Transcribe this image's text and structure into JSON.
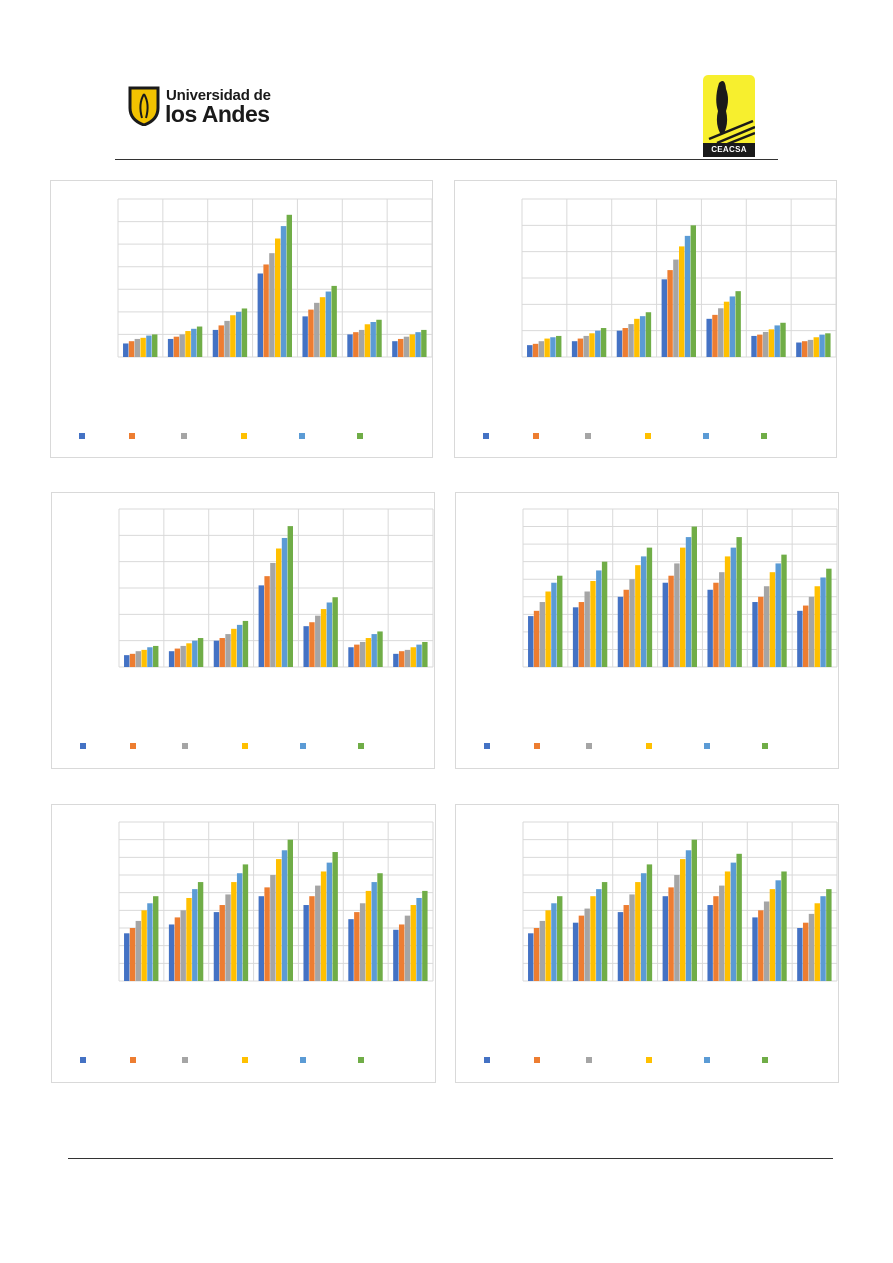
{
  "header": {
    "logo_left": {
      "line1": "Universidad de",
      "line2": "los Andes",
      "colors": {
        "shield": "#f2c200",
        "outline": "#1a1a1a"
      }
    },
    "logo_right": {
      "caption": "CEACSA",
      "colors": {
        "background": "#f7ef2e",
        "tree": "#1a1a1a"
      }
    }
  },
  "series_colors": [
    "#4472c4",
    "#ed7d31",
    "#a5a5a5",
    "#ffc000",
    "#5b9bd5",
    "#70ad47"
  ],
  "chart_data": [
    {
      "type": "bar",
      "categories": [
        "",
        "",
        "",
        "",
        "",
        "",
        ""
      ],
      "ylim": [
        0,
        7
      ],
      "grid": true,
      "legend": "bottom",
      "series": [
        {
          "values": [
            0.6,
            0.8,
            1.2,
            3.7,
            1.8,
            1.0,
            0.7
          ]
        },
        {
          "values": [
            0.7,
            0.9,
            1.4,
            4.1,
            2.1,
            1.1,
            0.8
          ]
        },
        {
          "values": [
            0.8,
            1.0,
            1.6,
            4.6,
            2.4,
            1.2,
            0.9
          ]
        },
        {
          "values": [
            0.85,
            1.15,
            1.85,
            5.25,
            2.65,
            1.45,
            1.0
          ]
        },
        {
          "values": [
            0.95,
            1.25,
            2.0,
            5.8,
            2.9,
            1.55,
            1.1
          ]
        },
        {
          "values": [
            1.0,
            1.35,
            2.15,
            6.3,
            3.15,
            1.65,
            1.2
          ]
        }
      ]
    },
    {
      "type": "bar",
      "categories": [
        "",
        "",
        "",
        "",
        "",
        "",
        ""
      ],
      "ylim": [
        0,
        6
      ],
      "grid": true,
      "legend": "bottom",
      "series": [
        {
          "values": [
            0.45,
            0.6,
            1.0,
            2.95,
            1.45,
            0.8,
            0.55
          ]
        },
        {
          "values": [
            0.5,
            0.7,
            1.1,
            3.3,
            1.6,
            0.85,
            0.6
          ]
        },
        {
          "values": [
            0.6,
            0.8,
            1.25,
            3.7,
            1.85,
            0.95,
            0.65
          ]
        },
        {
          "values": [
            0.7,
            0.9,
            1.45,
            4.2,
            2.1,
            1.05,
            0.75
          ]
        },
        {
          "values": [
            0.75,
            1.0,
            1.55,
            4.6,
            2.3,
            1.2,
            0.85
          ]
        },
        {
          "values": [
            0.8,
            1.1,
            1.7,
            5.0,
            2.5,
            1.3,
            0.9
          ]
        }
      ]
    },
    {
      "type": "bar",
      "categories": [
        "",
        "",
        "",
        "",
        "",
        "",
        ""
      ],
      "ylim": [
        0,
        6
      ],
      "grid": true,
      "legend": "bottom",
      "series": [
        {
          "values": [
            0.45,
            0.6,
            1.0,
            3.1,
            1.55,
            0.75,
            0.5
          ]
        },
        {
          "values": [
            0.5,
            0.7,
            1.1,
            3.45,
            1.7,
            0.85,
            0.6
          ]
        },
        {
          "values": [
            0.6,
            0.8,
            1.25,
            3.95,
            1.95,
            0.95,
            0.65
          ]
        },
        {
          "values": [
            0.65,
            0.9,
            1.45,
            4.5,
            2.2,
            1.1,
            0.75
          ]
        },
        {
          "values": [
            0.75,
            1.0,
            1.6,
            4.9,
            2.45,
            1.25,
            0.85
          ]
        },
        {
          "values": [
            0.8,
            1.1,
            1.75,
            5.35,
            2.65,
            1.35,
            0.95
          ]
        }
      ]
    },
    {
      "type": "bar",
      "categories": [
        "",
        "",
        "",
        "",
        "",
        "",
        ""
      ],
      "ylim": [
        0,
        9
      ],
      "grid": true,
      "legend": "bottom",
      "series": [
        {
          "values": [
            2.9,
            3.4,
            4.0,
            4.8,
            4.4,
            3.7,
            3.2
          ]
        },
        {
          "values": [
            3.2,
            3.7,
            4.4,
            5.2,
            4.8,
            4.0,
            3.5
          ]
        },
        {
          "values": [
            3.7,
            4.3,
            5.0,
            5.9,
            5.4,
            4.6,
            4.0
          ]
        },
        {
          "values": [
            4.3,
            4.9,
            5.8,
            6.8,
            6.3,
            5.4,
            4.6
          ]
        },
        {
          "values": [
            4.8,
            5.5,
            6.3,
            7.4,
            6.8,
            5.9,
            5.1
          ]
        },
        {
          "values": [
            5.2,
            6.0,
            6.8,
            8.0,
            7.4,
            6.4,
            5.6
          ]
        }
      ]
    },
    {
      "type": "bar",
      "categories": [
        "",
        "",
        "",
        "",
        "",
        "",
        ""
      ],
      "ylim": [
        0,
        9
      ],
      "grid": true,
      "legend": "bottom",
      "series": [
        {
          "values": [
            2.7,
            3.2,
            3.9,
            4.8,
            4.3,
            3.5,
            2.9
          ]
        },
        {
          "values": [
            3.0,
            3.6,
            4.3,
            5.3,
            4.8,
            3.9,
            3.2
          ]
        },
        {
          "values": [
            3.4,
            4.0,
            4.9,
            6.0,
            5.4,
            4.4,
            3.7
          ]
        },
        {
          "values": [
            4.0,
            4.7,
            5.6,
            6.9,
            6.2,
            5.1,
            4.3
          ]
        },
        {
          "values": [
            4.4,
            5.2,
            6.1,
            7.4,
            6.7,
            5.6,
            4.7
          ]
        },
        {
          "values": [
            4.8,
            5.6,
            6.6,
            8.0,
            7.3,
            6.1,
            5.1
          ]
        }
      ]
    },
    {
      "type": "bar",
      "categories": [
        "",
        "",
        "",
        "",
        "",
        "",
        ""
      ],
      "ylim": [
        0,
        9
      ],
      "grid": true,
      "legend": "bottom",
      "series": [
        {
          "values": [
            2.7,
            3.3,
            3.9,
            4.8,
            4.3,
            3.6,
            3.0
          ]
        },
        {
          "values": [
            3.0,
            3.7,
            4.3,
            5.3,
            4.8,
            4.0,
            3.3
          ]
        },
        {
          "values": [
            3.4,
            4.1,
            4.9,
            6.0,
            5.4,
            4.5,
            3.8
          ]
        },
        {
          "values": [
            4.0,
            4.8,
            5.6,
            6.9,
            6.2,
            5.2,
            4.4
          ]
        },
        {
          "values": [
            4.4,
            5.2,
            6.1,
            7.4,
            6.7,
            5.7,
            4.8
          ]
        },
        {
          "values": [
            4.8,
            5.6,
            6.6,
            8.0,
            7.2,
            6.2,
            5.2
          ]
        }
      ]
    }
  ]
}
